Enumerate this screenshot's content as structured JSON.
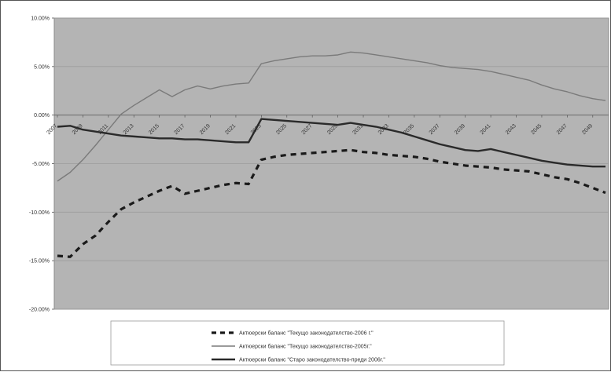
{
  "chart_data": {
    "type": "line",
    "title": "",
    "xlabel": "",
    "ylabel": "",
    "ylim": [
      -0.2,
      0.1
    ],
    "yticks": [
      "10.00%",
      "5.00%",
      "0.00%",
      "-5.00%",
      "-10.00%",
      "-15.00%",
      "-20.00%"
    ],
    "ytick_values": [
      0.1,
      0.05,
      0.0,
      -0.05,
      -0.1,
      -0.15,
      -0.2
    ],
    "grid": true,
    "plot_background": "#b4b4b4",
    "legend_position": "bottom",
    "x": [
      2007,
      2008,
      2009,
      2010,
      2011,
      2012,
      2013,
      2014,
      2015,
      2016,
      2017,
      2018,
      2019,
      2020,
      2021,
      2022,
      2023,
      2024,
      2025,
      2026,
      2027,
      2028,
      2029,
      2030,
      2031,
      2032,
      2033,
      2034,
      2035,
      2036,
      2037,
      2038,
      2039,
      2040,
      2041,
      2042,
      2043,
      2044,
      2045,
      2046,
      2047,
      2048,
      2049,
      2050
    ],
    "xtick_labels": [
      "2007",
      "2009",
      "2011",
      "2013",
      "2015",
      "2017",
      "2019",
      "2021",
      "2023",
      "2025",
      "2027",
      "2029",
      "2031",
      "2033",
      "2035",
      "2037",
      "2039",
      "2041",
      "2043",
      "2045",
      "2047",
      "2049"
    ],
    "series": [
      {
        "name": "Актюерски баланс \"Текущо законодателство-2006 г.\"",
        "style": "dashed",
        "color": "#1a1a1a",
        "values": [
          -0.145,
          -0.146,
          -0.133,
          -0.124,
          -0.11,
          -0.097,
          -0.09,
          -0.084,
          -0.078,
          -0.073,
          -0.081,
          -0.078,
          -0.075,
          -0.072,
          -0.07,
          -0.071,
          -0.046,
          -0.043,
          -0.041,
          -0.04,
          -0.039,
          -0.038,
          -0.037,
          -0.036,
          -0.038,
          -0.039,
          -0.041,
          -0.042,
          -0.043,
          -0.045,
          -0.048,
          -0.05,
          -0.052,
          -0.053,
          -0.054,
          -0.056,
          -0.057,
          -0.058,
          -0.061,
          -0.064,
          -0.066,
          -0.07,
          -0.075,
          -0.08
        ]
      },
      {
        "name": "Актюерски баланс \"Текущо законодателство-2005г.\"",
        "style": "solid-thin",
        "color": "#7a7a7a",
        "values": [
          -0.068,
          -0.059,
          -0.046,
          -0.031,
          -0.015,
          0.001,
          0.01,
          0.018,
          0.026,
          0.019,
          0.026,
          0.03,
          0.027,
          0.03,
          0.032,
          0.033,
          0.053,
          0.056,
          0.058,
          0.06,
          0.061,
          0.061,
          0.062,
          0.065,
          0.064,
          0.062,
          0.06,
          0.058,
          0.056,
          0.054,
          0.051,
          0.049,
          0.048,
          0.047,
          0.045,
          0.042,
          0.039,
          0.036,
          0.031,
          0.027,
          0.024,
          0.02,
          0.017,
          0.015
        ]
      },
      {
        "name": "Актюерски баланс \"Старо законодателство-преди 2006г.\"",
        "style": "solid-thick",
        "color": "#2a2a2a",
        "values": [
          -0.012,
          -0.011,
          -0.015,
          -0.017,
          -0.019,
          -0.021,
          -0.022,
          -0.023,
          -0.024,
          -0.024,
          -0.025,
          -0.025,
          -0.026,
          -0.027,
          -0.028,
          -0.028,
          -0.004,
          -0.005,
          -0.006,
          -0.007,
          -0.008,
          -0.009,
          -0.01,
          -0.008,
          -0.01,
          -0.012,
          -0.015,
          -0.018,
          -0.022,
          -0.026,
          -0.03,
          -0.033,
          -0.036,
          -0.037,
          -0.035,
          -0.038,
          -0.041,
          -0.044,
          -0.047,
          -0.049,
          -0.051,
          -0.052,
          -0.053,
          -0.053
        ]
      }
    ]
  }
}
